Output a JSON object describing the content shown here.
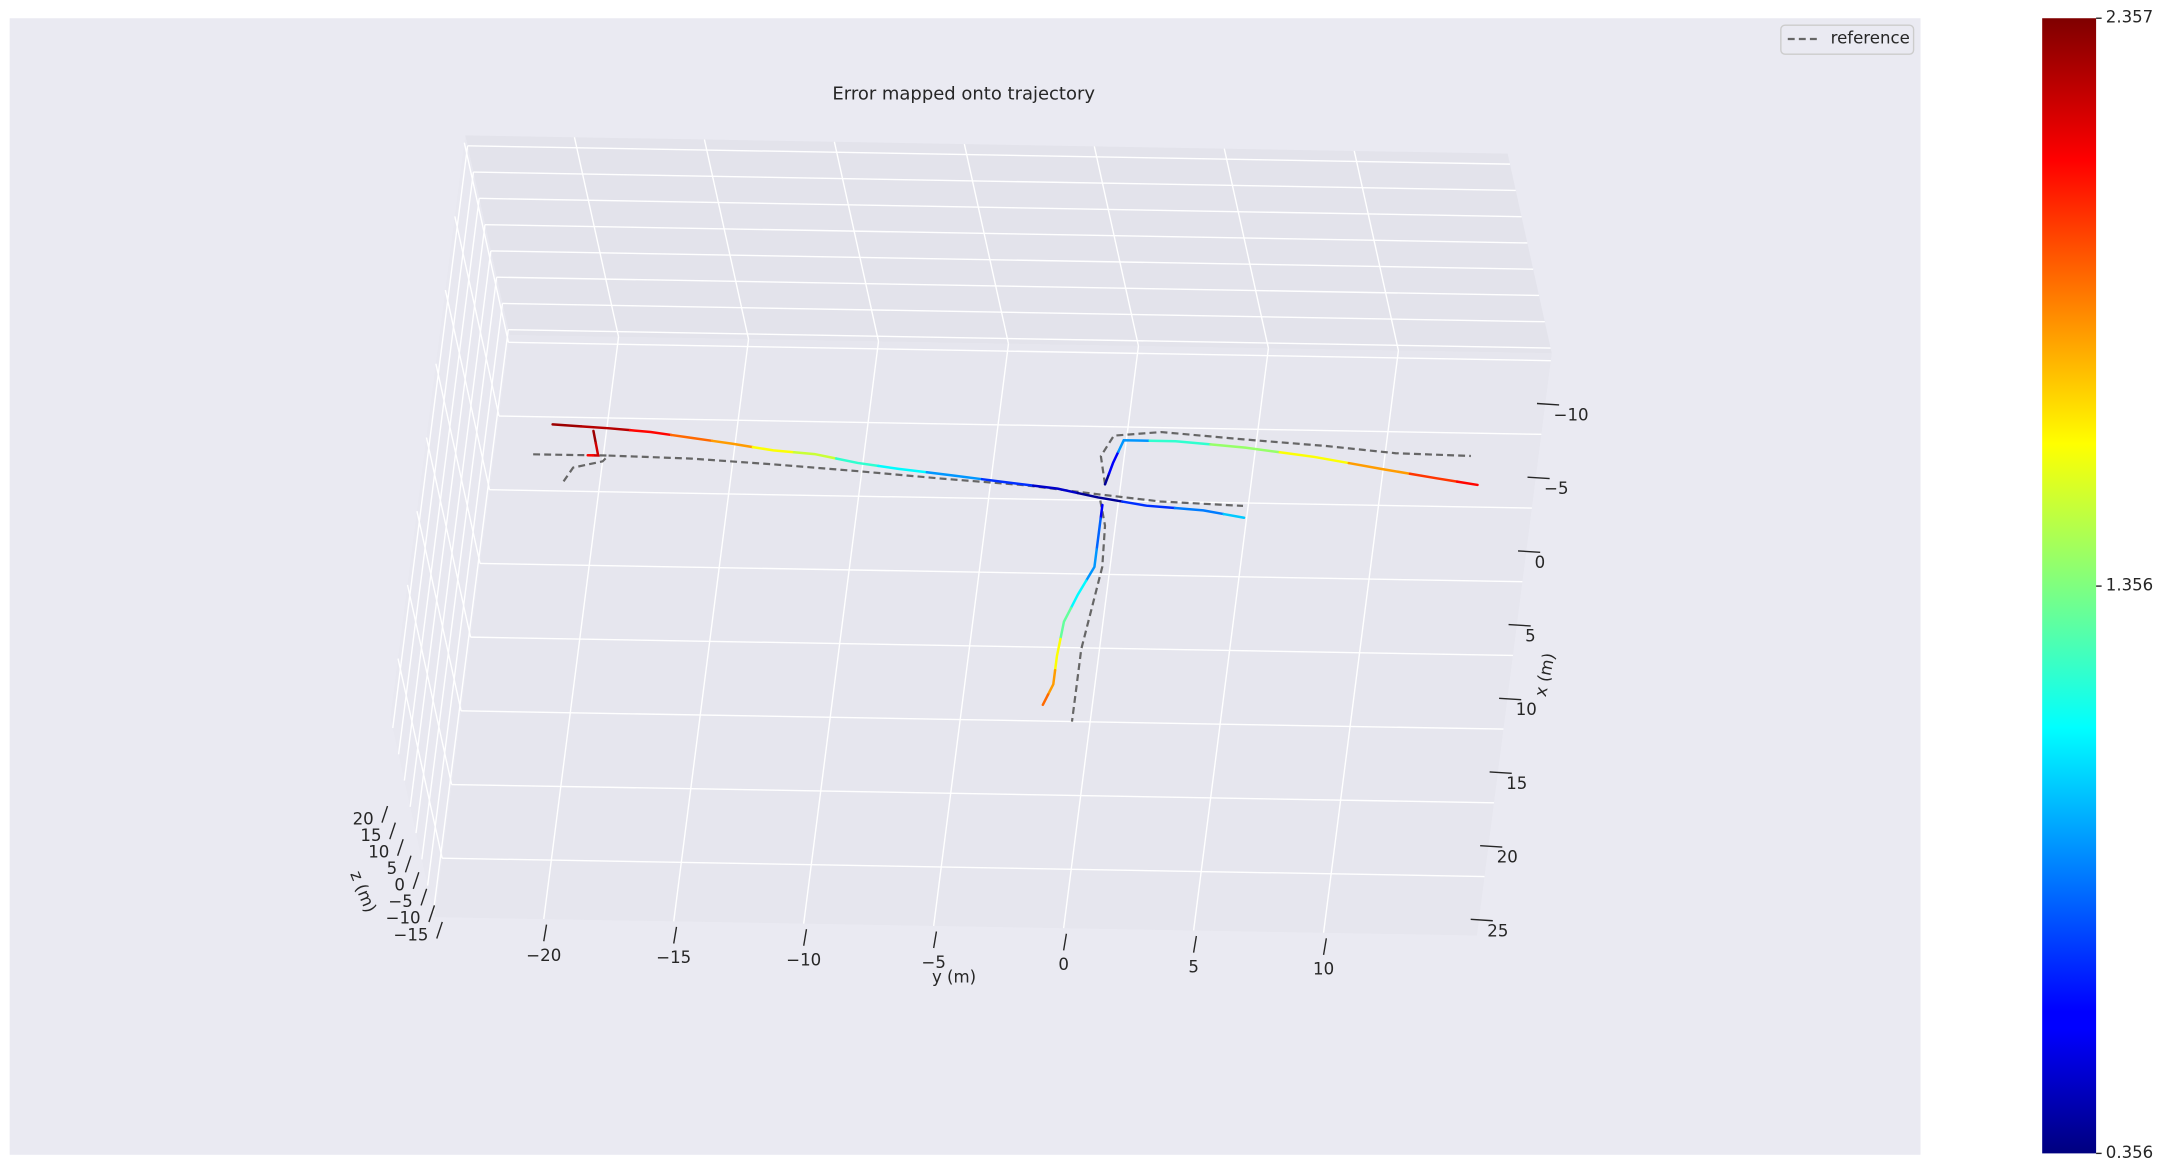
{
  "chart_data": {
    "type": "trajectory3d",
    "title": "Error mapped onto trajectory",
    "xlabel": "x (m)",
    "ylabel": "y (m)",
    "zlabel": "z (m)",
    "xlim": [
      -10.5,
      29
    ],
    "ylim": [
      -24.2,
      15.9
    ],
    "zlim": [
      -16,
      22
    ],
    "xticks": [
      {
        "value": -10,
        "label": "−10"
      },
      {
        "value": -5,
        "label": "−5"
      },
      0,
      5,
      10,
      15,
      20,
      25
    ],
    "yticks": [
      {
        "value": -20,
        "label": "−20"
      },
      {
        "value": -15,
        "label": "−15"
      },
      {
        "value": -10,
        "label": "−10"
      },
      {
        "value": -5,
        "label": "−5"
      },
      0,
      5,
      10
    ],
    "zticks": [
      {
        "value": -15,
        "label": "−15"
      },
      {
        "value": -10,
        "label": "−10"
      },
      {
        "value": -5,
        "label": "−5"
      },
      0,
      5,
      10,
      15,
      20
    ],
    "grid": true,
    "legend": "upper right",
    "colormap": "jet",
    "clim": [
      0.356,
      2.357
    ],
    "cticks": [
      0.356,
      1.356,
      2.357
    ],
    "series": [
      {
        "name": "reference",
        "color": "#666666",
        "linestyle": "dashed",
        "x": [
          -2.45,
          -2.45,
          null,
          -0.65,
          -1.6,
          -2.05,
          -2.45,
          -2.35,
          -2.05,
          -1.7,
          -1.3,
          -0.95,
          -0.45,
          0,
          0.2,
          null,
          0,
          1.7,
          4.5,
          7.3,
          10.1,
          12.9,
          15.0,
          null,
          -1.1,
          -3.0,
          -4.4,
          -4.7,
          -4.3,
          -3.95,
          -3.55,
          -3.45
        ],
        "y": [
          -22.7,
          -19.8,
          null,
          -21.4,
          -21.1,
          -20.0,
          -19.8,
          -16.6,
          -13.4,
          -10.2,
          -7.0,
          -3.7,
          -1.0,
          1.6,
          4.8,
          null,
          -0.7,
          -0.4,
          -0.3,
          -0.5,
          -0.7,
          -0.7,
          -0.7,
          null,
          -0.6,
          -0.9,
          -0.5,
          1.3,
          4.5,
          7.7,
          10.4,
          13.3
        ]
      }
    ],
    "trajectory": {
      "x": [
        -4.5,
        -4.3,
        -4.1,
        -3.75,
        -3.4,
        -3.0,
        -2.8,
        -2.25,
        -1.9,
        -1.5,
        -1.1,
        -0.75,
        -0.2,
        0.3,
        0.55,
        1.0,
        null,
        -4.1,
        -2.45,
        -2.45,
        null,
        0.3,
        2.15,
        4.5,
        6.4,
        8.25,
        10.6,
        12.5,
        13.9,
        null,
        -1.1,
        -2.55,
        -4.1,
        -4.1,
        -3.75,
        -3.2,
        -2.45,
        -1.9,
        -1.5
      ],
      "y": [
        -22.1,
        -19.9,
        -18.3,
        -16.7,
        -15.1,
        -13.5,
        -11.9,
        -10.2,
        -8.6,
        -6.4,
        -4.3,
        -2.4,
        -0.8,
        1.1,
        3.3,
        4.9,
        null,
        -20.5,
        -20.2,
        -20.6,
        null,
        -0.6,
        -0.6,
        -0.6,
        -1.1,
        -1.5,
        -1.6,
        -1.6,
        -1.9,
        null,
        -0.6,
        -0.4,
        -0.1,
        1.9,
        4.6,
        7.3,
        10.0,
        12.1,
        13.7
      ],
      "error": [
        2.3,
        2.25,
        2.1,
        1.9,
        1.8,
        1.6,
        1.5,
        1.2,
        1.1,
        0.9,
        0.7,
        0.5,
        0.4,
        0.7,
        0.85,
        1.0,
        null,
        2.3,
        2.2,
        2.1,
        null,
        0.6,
        0.8,
        0.9,
        1.1,
        1.3,
        1.6,
        1.8,
        1.9,
        null,
        0.4,
        0.6,
        0.9,
        1.2,
        1.4,
        1.6,
        1.8,
        2.0,
        2.1
      ]
    }
  }
}
